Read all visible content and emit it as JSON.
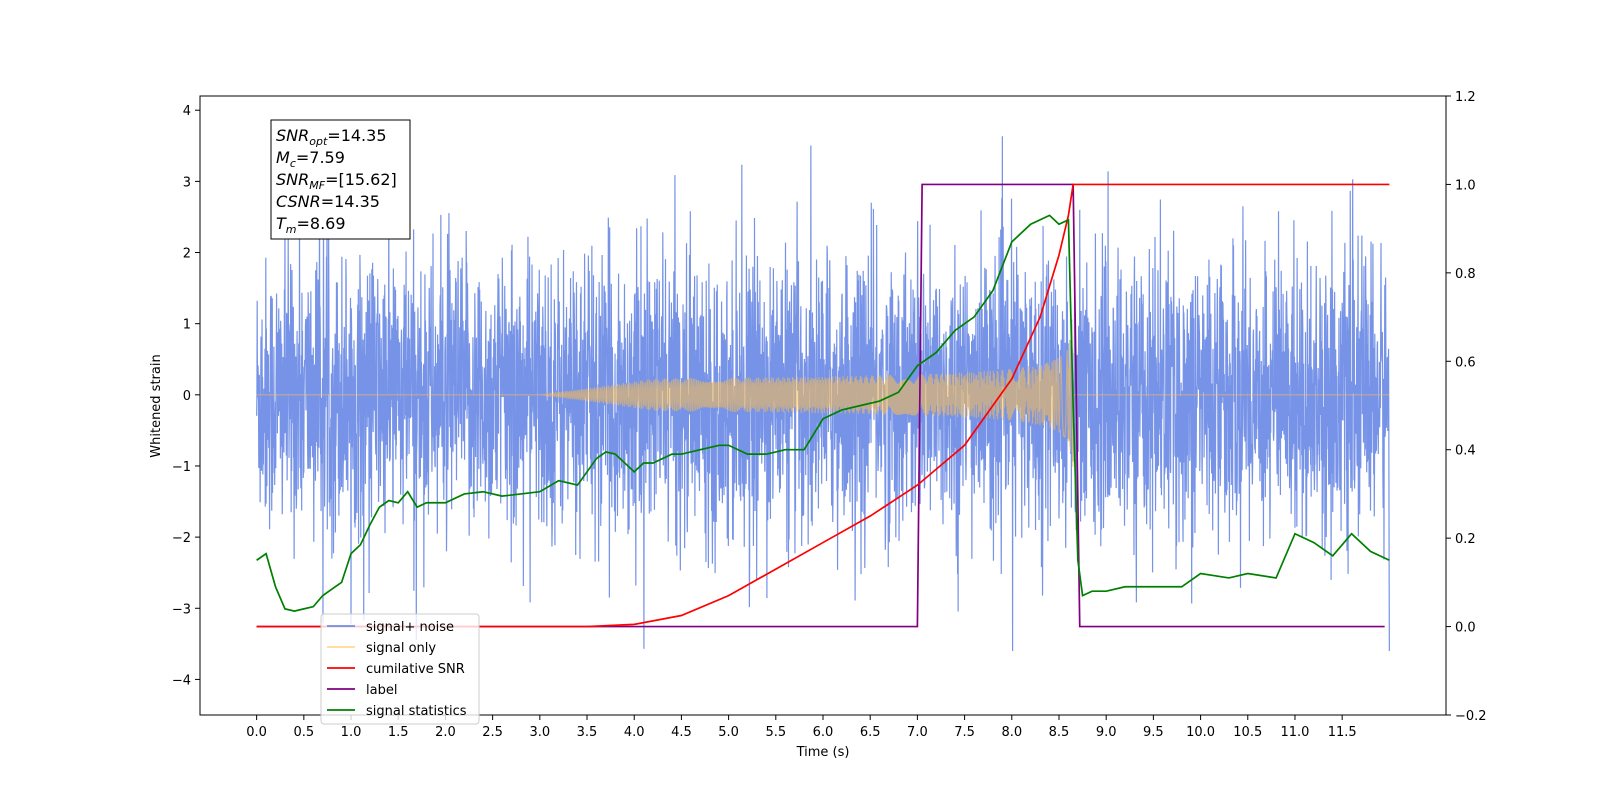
{
  "chart_data": {
    "type": "line",
    "xlabel": "Time (s)",
    "ylabel_left": "Whitened strain",
    "ylabel_right": "",
    "xlim": [
      -0.6,
      12.6
    ],
    "ylim_left": [
      -4.5,
      4.2
    ],
    "ylim_right": [
      -0.2,
      1.2
    ],
    "x_ticks": [
      0.0,
      0.5,
      1.0,
      1.5,
      2.0,
      2.5,
      3.0,
      3.5,
      4.0,
      4.5,
      5.0,
      5.5,
      6.0,
      6.5,
      7.0,
      7.5,
      8.0,
      8.5,
      9.0,
      9.5,
      10.0,
      10.5,
      11.0,
      11.5
    ],
    "x_tick_labels": [
      "0.0",
      "0.5",
      "1.0",
      "1.5",
      "2.0",
      "2.5",
      "3.0",
      "3.5",
      "4.0",
      "4.5",
      "5.0",
      "5.5",
      "6.0",
      "6.5",
      "7.0",
      "7.5",
      "8.0",
      "8.5",
      "9.0",
      "9.5",
      "10.0",
      "10.5",
      "11.0",
      "11.5"
    ],
    "y_left_ticks": [
      -4,
      -3,
      -2,
      -1,
      0,
      1,
      2,
      3,
      4
    ],
    "y_left_tick_labels": [
      "−4",
      "−3",
      "−2",
      "−1",
      "0",
      "1",
      "2",
      "3",
      "4"
    ],
    "y_right_ticks": [
      -0.2,
      0.0,
      0.2,
      0.4,
      0.6,
      0.8,
      1.0,
      1.2
    ],
    "y_right_tick_labels": [
      "−0.2",
      "0.0",
      "0.2",
      "0.4",
      "0.6",
      "0.8",
      "1.0",
      "1.2"
    ],
    "legend_position": "lower-left",
    "grid": false,
    "series": [
      {
        "name": "signal+ noise",
        "axis": "left",
        "color": "#6f8de6",
        "style": "dense noise band, roughly uniform amplitude about ±2.3 with spikes to ±3.8",
        "x_range": [
          0.0,
          12.0
        ],
        "envelope": [
          -2.3,
          2.3
        ]
      },
      {
        "name": "signal only",
        "axis": "left",
        "color": "#ffc04d",
        "style": "chirp: zero until ~3.5 s, amplitude grows to ~1.0 at 8.65 s, then drops to 0",
        "x_range": [
          0.0,
          12.0
        ],
        "chirp_end": 8.65,
        "peak_amplitude": 1.0
      },
      {
        "name": "cumilative SNR",
        "axis": "right",
        "color": "#ff0000",
        "x": [
          0.0,
          3.0,
          3.5,
          4.0,
          4.5,
          5.0,
          5.5,
          6.0,
          6.5,
          7.0,
          7.5,
          8.0,
          8.3,
          8.5,
          8.6,
          8.65,
          9.0,
          10.0,
          11.0,
          12.0
        ],
        "y": [
          0.0,
          0.0,
          0.0,
          0.005,
          0.025,
          0.07,
          0.13,
          0.19,
          0.25,
          0.32,
          0.41,
          0.56,
          0.7,
          0.84,
          0.93,
          1.0,
          1.0,
          1.0,
          1.0,
          1.0
        ]
      },
      {
        "name": "label",
        "axis": "right",
        "color": "#800080",
        "x": [
          0.0,
          7.0,
          7.05,
          8.65,
          8.72,
          11.95
        ],
        "y": [
          0.0,
          0.0,
          1.0,
          1.0,
          0.0,
          0.0
        ]
      },
      {
        "name": "signal statistics",
        "axis": "right",
        "color": "#008000",
        "x": [
          0.0,
          0.1,
          0.2,
          0.3,
          0.4,
          0.5,
          0.6,
          0.7,
          0.8,
          0.9,
          1.0,
          1.1,
          1.2,
          1.3,
          1.4,
          1.5,
          1.6,
          1.7,
          1.8,
          2.0,
          2.2,
          2.4,
          2.6,
          2.8,
          3.0,
          3.2,
          3.4,
          3.6,
          3.7,
          3.8,
          4.0,
          4.1,
          4.2,
          4.4,
          4.5,
          4.7,
          4.9,
          5.0,
          5.2,
          5.4,
          5.6,
          5.8,
          6.0,
          6.1,
          6.2,
          6.4,
          6.6,
          6.8,
          7.0,
          7.2,
          7.4,
          7.6,
          7.8,
          8.0,
          8.2,
          8.4,
          8.5,
          8.6,
          8.65,
          8.7,
          8.75,
          8.85,
          9.0,
          9.2,
          9.5,
          9.8,
          10.0,
          10.3,
          10.5,
          10.8,
          11.0,
          11.2,
          11.4,
          11.6,
          11.8,
          12.0
        ],
        "y": [
          0.15,
          0.165,
          0.09,
          0.04,
          0.035,
          0.04,
          0.045,
          0.07,
          0.085,
          0.1,
          0.165,
          0.185,
          0.23,
          0.27,
          0.285,
          0.28,
          0.305,
          0.27,
          0.28,
          0.28,
          0.3,
          0.305,
          0.295,
          0.3,
          0.305,
          0.33,
          0.32,
          0.38,
          0.395,
          0.39,
          0.35,
          0.37,
          0.37,
          0.39,
          0.39,
          0.4,
          0.41,
          0.41,
          0.39,
          0.39,
          0.4,
          0.4,
          0.47,
          0.48,
          0.49,
          0.5,
          0.51,
          0.53,
          0.59,
          0.62,
          0.67,
          0.7,
          0.76,
          0.87,
          0.91,
          0.93,
          0.91,
          0.92,
          0.5,
          0.15,
          0.07,
          0.08,
          0.08,
          0.09,
          0.09,
          0.09,
          0.12,
          0.11,
          0.12,
          0.11,
          0.21,
          0.19,
          0.16,
          0.21,
          0.17,
          0.15
        ]
      }
    ],
    "annotation": {
      "lines": [
        {
          "base": "SNR",
          "sub": "opt",
          "value": "=14.35"
        },
        {
          "base": "M",
          "sub": "c",
          "value": "=7.59"
        },
        {
          "base": "SNR",
          "sub": "MF",
          "value": "=[15.62]"
        },
        {
          "base": "CSNR",
          "sub": "",
          "value": "=14.35"
        },
        {
          "base": "T",
          "sub": "m",
          "value": "=8.69"
        }
      ]
    }
  }
}
